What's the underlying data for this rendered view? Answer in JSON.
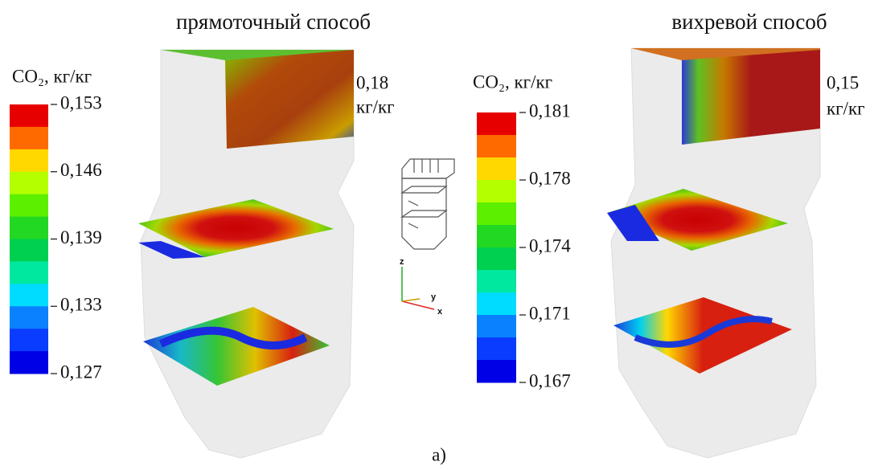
{
  "figure": {
    "panels": [
      {
        "title": "прямоточный способ",
        "legend_title": "CO₂, кг/кг",
        "legend_ticks": [
          "0,153",
          "0,146",
          "0,139",
          "0,133",
          "0,127"
        ],
        "annotation": [
          "0,18",
          "кг/кг"
        ]
      },
      {
        "title": "вихревой способ",
        "legend_title": "CO₂, кг/кг",
        "legend_ticks": [
          "0,181",
          "0,178",
          "0,174",
          "0,171",
          "0,167"
        ],
        "annotation": [
          "0,15",
          "кг/кг"
        ]
      }
    ],
    "axes": {
      "z": "z",
      "y": "y",
      "x": "x"
    },
    "caption": "а)"
  }
}
